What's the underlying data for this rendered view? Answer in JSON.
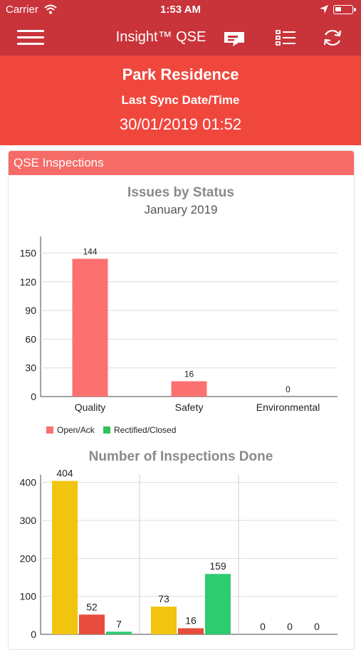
{
  "status_bar": {
    "carrier": "Carrier",
    "time": "1:53 AM"
  },
  "nav": {
    "title": "Insight™ QSE",
    "icons": [
      "hamburger-menu-icon",
      "message-icon",
      "list-icon",
      "refresh-icon"
    ]
  },
  "project": {
    "name": "Park Residence",
    "sync_label": "Last Sync Date/Time",
    "sync_value": "30/01/2019 01:52"
  },
  "section": {
    "title": "QSE Inspections"
  },
  "colors": {
    "nav": "#c9333a",
    "header": "#f0473d",
    "card_header": "#f56b68",
    "open": "#fb7170",
    "rectified": "#2fc25b",
    "yellow": "#f1c40f",
    "red": "#e74c3c",
    "green": "#2ecc71"
  },
  "chart_data": [
    {
      "type": "bar",
      "title": "Issues by Status",
      "subtitle": "January 2019",
      "categories": [
        "Quality",
        "Safety",
        "Environmental"
      ],
      "series": [
        {
          "name": "Open/Ack",
          "values": [
            144,
            16,
            0
          ],
          "color": "#fb7170"
        },
        {
          "name": "Rectified/Closed",
          "values": [
            null,
            null,
            null
          ],
          "color": "#2fc25b"
        }
      ],
      "value_labels": [
        "144",
        "16",
        "0"
      ],
      "yticks": [
        0,
        30,
        60,
        90,
        120,
        150
      ],
      "ylim": [
        0,
        160
      ],
      "grid": true,
      "legend": "bottom-left"
    },
    {
      "type": "bar",
      "title": "Number of Inspections Done",
      "groups": 3,
      "series_colors": [
        "#f1c40f",
        "#e74c3c",
        "#2ecc71"
      ],
      "values": [
        [
          404,
          52,
          7
        ],
        [
          73,
          16,
          159
        ],
        [
          0,
          0,
          0
        ]
      ],
      "value_labels": [
        [
          "404",
          "52",
          "7"
        ],
        [
          "73",
          "16",
          "159"
        ],
        [
          "0",
          "0",
          "0"
        ]
      ],
      "yticks": [
        0,
        100,
        200,
        300,
        400
      ],
      "ylim": [
        0,
        420
      ],
      "grid": true
    }
  ]
}
